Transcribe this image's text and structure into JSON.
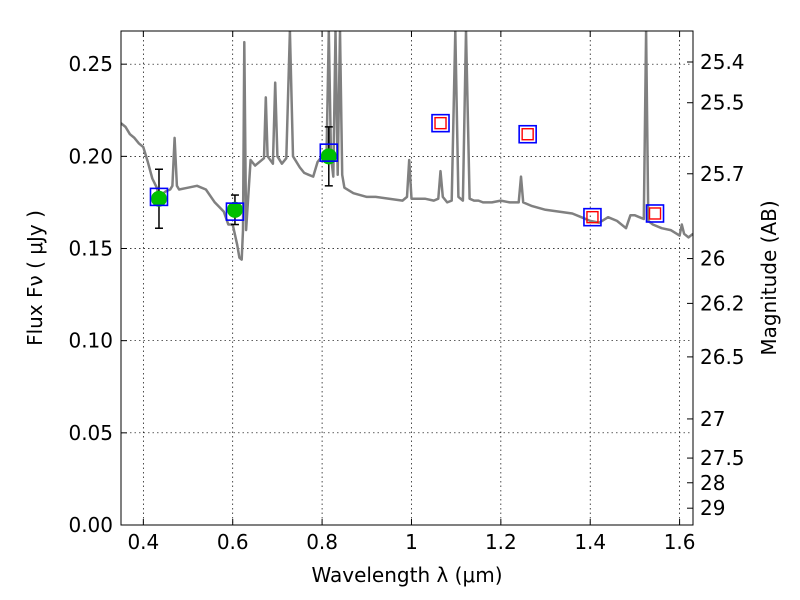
{
  "chart_data": {
    "type": "scatter",
    "xlabel": "Wavelength  λ (μm)",
    "ylabel": "Flux  Fν  ( μJy )",
    "y2label": "Magnitude (AB)",
    "xlim": [
      0.35,
      1.63
    ],
    "ylim": [
      0.0,
      0.268
    ],
    "grid": true,
    "x_ticks": [
      {
        "value": 0.4,
        "label": "0.4"
      },
      {
        "value": 0.6,
        "label": "0.6"
      },
      {
        "value": 0.8,
        "label": "0.8"
      },
      {
        "value": 1.0,
        "label": "1"
      },
      {
        "value": 1.2,
        "label": "1.2"
      },
      {
        "value": 1.4,
        "label": "1.4"
      },
      {
        "value": 1.6,
        "label": "1.6"
      }
    ],
    "y_ticks": [
      {
        "value": 0.0,
        "label": "0.00"
      },
      {
        "value": 0.05,
        "label": "0.05"
      },
      {
        "value": 0.1,
        "label": "0.10"
      },
      {
        "value": 0.15,
        "label": "0.15"
      },
      {
        "value": 0.2,
        "label": "0.20"
      },
      {
        "value": 0.25,
        "label": "0.25"
      }
    ],
    "y2_ticks": [
      {
        "mag": 25.4,
        "label": "25.4"
      },
      {
        "mag": 25.5,
        "label": "25.5"
      },
      {
        "mag": 25.7,
        "label": "25.7"
      },
      {
        "mag": 26.0,
        "label": "26"
      },
      {
        "mag": 26.2,
        "label": "26.2"
      },
      {
        "mag": 26.5,
        "label": "26.5"
      },
      {
        "mag": 27.0,
        "label": "27"
      },
      {
        "mag": 27.5,
        "label": "27.5"
      },
      {
        "mag": 28.0,
        "label": "28"
      },
      {
        "mag": 29.0,
        "label": "29"
      }
    ],
    "series": [
      {
        "kind": "line",
        "color": "#808080",
        "points": [
          [
            0.35,
            0.218
          ],
          [
            0.36,
            0.216
          ],
          [
            0.37,
            0.212
          ],
          [
            0.38,
            0.21
          ],
          [
            0.39,
            0.207
          ],
          [
            0.4,
            0.205
          ],
          [
            0.41,
            0.197
          ],
          [
            0.42,
            0.188
          ],
          [
            0.43,
            0.183
          ],
          [
            0.435,
            0.178
          ],
          [
            0.44,
            0.179
          ],
          [
            0.45,
            0.181
          ],
          [
            0.46,
            0.182
          ],
          [
            0.465,
            0.184
          ],
          [
            0.47,
            0.21
          ],
          [
            0.475,
            0.184
          ],
          [
            0.48,
            0.182
          ],
          [
            0.5,
            0.183
          ],
          [
            0.52,
            0.184
          ],
          [
            0.54,
            0.182
          ],
          [
            0.56,
            0.175
          ],
          [
            0.58,
            0.17
          ],
          [
            0.59,
            0.163
          ],
          [
            0.6,
            0.163
          ],
          [
            0.61,
            0.152
          ],
          [
            0.615,
            0.145
          ],
          [
            0.62,
            0.144
          ],
          [
            0.623,
            0.16
          ],
          [
            0.626,
            0.262
          ],
          [
            0.63,
            0.16
          ],
          [
            0.64,
            0.198
          ],
          [
            0.65,
            0.195
          ],
          [
            0.66,
            0.197
          ],
          [
            0.67,
            0.199
          ],
          [
            0.674,
            0.232
          ],
          [
            0.678,
            0.2
          ],
          [
            0.69,
            0.196
          ],
          [
            0.695,
            0.24
          ],
          [
            0.7,
            0.2
          ],
          [
            0.71,
            0.196
          ],
          [
            0.72,
            0.199
          ],
          [
            0.728,
            0.268
          ],
          [
            0.735,
            0.2
          ],
          [
            0.75,
            0.194
          ],
          [
            0.76,
            0.191
          ],
          [
            0.77,
            0.19
          ],
          [
            0.78,
            0.189
          ],
          [
            0.79,
            0.197
          ],
          [
            0.8,
            0.2
          ],
          [
            0.81,
            0.203
          ],
          [
            0.815,
            0.268
          ],
          [
            0.82,
            0.2
          ],
          [
            0.825,
            0.189
          ],
          [
            0.83,
            0.268
          ],
          [
            0.835,
            0.19
          ],
          [
            0.84,
            0.268
          ],
          [
            0.845,
            0.19
          ],
          [
            0.85,
            0.183
          ],
          [
            0.87,
            0.18
          ],
          [
            0.9,
            0.178
          ],
          [
            0.92,
            0.178
          ],
          [
            0.95,
            0.177
          ],
          [
            0.98,
            0.176
          ],
          [
            0.99,
            0.178
          ],
          [
            0.995,
            0.198
          ],
          [
            1.0,
            0.177
          ],
          [
            1.03,
            0.177
          ],
          [
            1.05,
            0.176
          ],
          [
            1.06,
            0.177
          ],
          [
            1.065,
            0.192
          ],
          [
            1.07,
            0.178
          ],
          [
            1.08,
            0.175
          ],
          [
            1.09,
            0.176
          ],
          [
            1.098,
            0.268
          ],
          [
            1.105,
            0.178
          ],
          [
            1.115,
            0.176
          ],
          [
            1.122,
            0.268
          ],
          [
            1.13,
            0.177
          ],
          [
            1.14,
            0.176
          ],
          [
            1.15,
            0.176
          ],
          [
            1.16,
            0.175
          ],
          [
            1.18,
            0.175
          ],
          [
            1.2,
            0.176
          ],
          [
            1.22,
            0.175
          ],
          [
            1.24,
            0.175
          ],
          [
            1.245,
            0.189
          ],
          [
            1.25,
            0.175
          ],
          [
            1.27,
            0.173
          ],
          [
            1.3,
            0.171
          ],
          [
            1.33,
            0.17
          ],
          [
            1.36,
            0.169
          ],
          [
            1.38,
            0.167
          ],
          [
            1.4,
            0.165
          ],
          [
            1.42,
            0.164
          ],
          [
            1.44,
            0.167
          ],
          [
            1.46,
            0.165
          ],
          [
            1.48,
            0.161
          ],
          [
            1.49,
            0.168
          ],
          [
            1.5,
            0.168
          ],
          [
            1.51,
            0.167
          ],
          [
            1.52,
            0.166
          ],
          [
            1.525,
            0.268
          ],
          [
            1.53,
            0.165
          ],
          [
            1.54,
            0.163
          ],
          [
            1.56,
            0.161
          ],
          [
            1.58,
            0.16
          ],
          [
            1.6,
            0.157
          ],
          [
            1.605,
            0.163
          ],
          [
            1.61,
            0.158
          ],
          [
            1.62,
            0.156
          ],
          [
            1.63,
            0.158
          ]
        ]
      },
      {
        "kind": "scatter",
        "marker": "circle",
        "color": "#00c000",
        "points": [
          {
            "x": 0.435,
            "y": 0.177,
            "err": 0.016
          },
          {
            "x": 0.605,
            "y": 0.171,
            "err": 0.008
          },
          {
            "x": 0.815,
            "y": 0.2,
            "err": 0.016
          }
        ]
      },
      {
        "kind": "scatter",
        "marker": "square-open",
        "color": "#0000ff",
        "points": [
          {
            "x": 0.435,
            "y": 0.178
          },
          {
            "x": 0.605,
            "y": 0.17
          },
          {
            "x": 0.815,
            "y": 0.202
          },
          {
            "x": 1.065,
            "y": 0.218
          },
          {
            "x": 1.26,
            "y": 0.212
          },
          {
            "x": 1.405,
            "y": 0.167
          },
          {
            "x": 1.545,
            "y": 0.169
          }
        ]
      },
      {
        "kind": "scatter",
        "marker": "square-open-small",
        "color": "#ff0000",
        "points": [
          {
            "x": 1.065,
            "y": 0.218
          },
          {
            "x": 1.26,
            "y": 0.212
          },
          {
            "x": 1.405,
            "y": 0.167
          },
          {
            "x": 1.545,
            "y": 0.169
          }
        ]
      }
    ]
  }
}
